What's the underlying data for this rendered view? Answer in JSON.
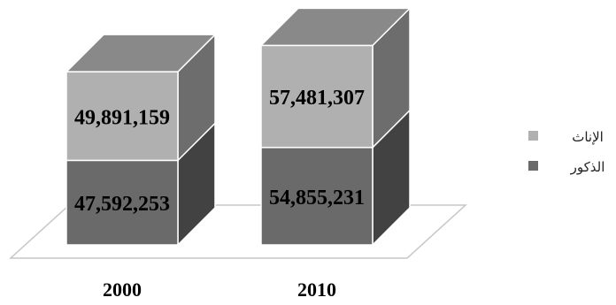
{
  "chart_data": {
    "type": "bar",
    "stacked": true,
    "three_d": true,
    "categories": [
      "2000",
      "2010"
    ],
    "series": [
      {
        "name": "الذكور",
        "values": [
          47592253,
          54855231
        ],
        "labels": [
          "47,592,253",
          "54,855,231"
        ],
        "color": "#6a6a6a"
      },
      {
        "name": "الإناث",
        "values": [
          49891159,
          57481307
        ],
        "labels": [
          "49,891,159",
          "57,481,307"
        ],
        "color": "#b0b0b0"
      }
    ],
    "ylim": [
      0,
      115000000
    ],
    "grid": false,
    "legend": "right",
    "title": "",
    "xlabel": "",
    "ylabel": ""
  }
}
